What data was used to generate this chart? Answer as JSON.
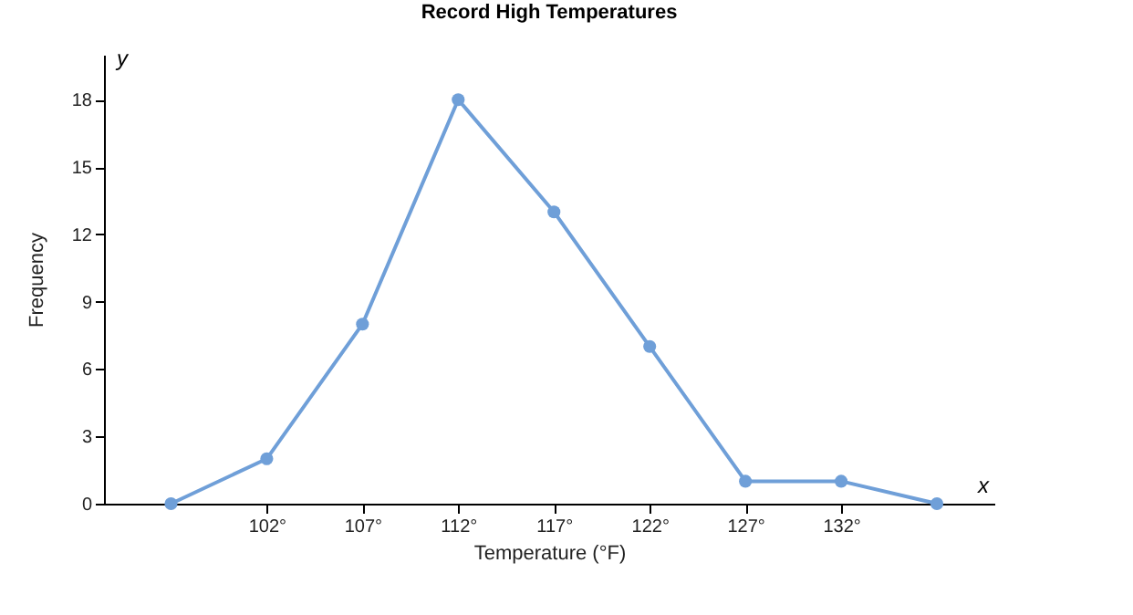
{
  "chart_data": {
    "type": "line",
    "title": "Record High Temperatures",
    "xlabel": "Temperature (°F)",
    "ylabel": "Frequency",
    "x": [
      97,
      102,
      107,
      112,
      117,
      122,
      127,
      132,
      137
    ],
    "series": [
      {
        "color": "#6f9fd8",
        "values": [
          0,
          2,
          8,
          18,
          13,
          7,
          1,
          1,
          0
        ]
      }
    ],
    "marker": "circle",
    "grid": false,
    "xlim": [
      93.5,
      140
    ],
    "ylim": [
      0,
      20
    ],
    "xticks": [
      {
        "value": 102,
        "label": "102°"
      },
      {
        "value": 107,
        "label": "107°"
      },
      {
        "value": 112,
        "label": "112°"
      },
      {
        "value": 117,
        "label": "117°"
      },
      {
        "value": 122,
        "label": "122°"
      },
      {
        "value": 127,
        "label": "127°"
      },
      {
        "value": 132,
        "label": "132°"
      }
    ],
    "yticks": [
      0,
      3,
      6,
      9,
      12,
      15,
      18
    ],
    "annotations": [
      "x",
      "y"
    ]
  }
}
